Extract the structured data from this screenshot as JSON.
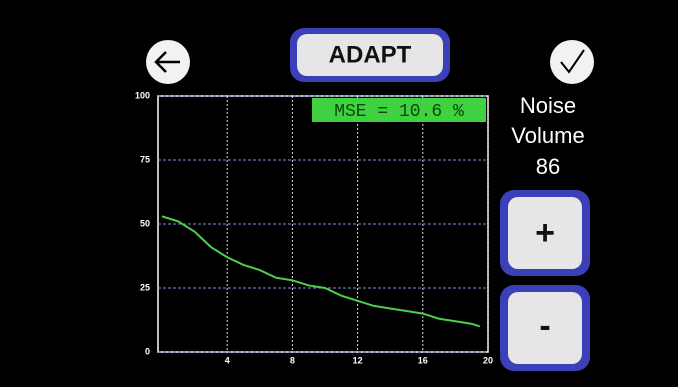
{
  "screen": {
    "title": "ADAPT",
    "side_label": [
      "Noise",
      "Volume"
    ],
    "side_value": 86,
    "plus_button": "+",
    "minus_button": "-"
  },
  "chart_data": {
    "type": "line",
    "annotation": "MSE = 10.6 %",
    "x": [
      0,
      0.5,
      1,
      2,
      3,
      4,
      5,
      6,
      7,
      8,
      9,
      10,
      11,
      12,
      13,
      14,
      15,
      16,
      17,
      18,
      19,
      19.5
    ],
    "series": [
      {
        "color": "#4ccf4c",
        "values": [
          53,
          52,
          51,
          47,
          41,
          37,
          34,
          32,
          29,
          28,
          26,
          25,
          22,
          20,
          18,
          17,
          16,
          15,
          13,
          12,
          11,
          10
        ]
      }
    ],
    "xlim": [
      0,
      20
    ],
    "xticks": [
      4,
      8,
      12,
      16,
      20
    ],
    "ylim": [
      0,
      100
    ],
    "yticks": [
      0,
      25,
      50,
      75,
      100
    ],
    "grid": true
  }
}
